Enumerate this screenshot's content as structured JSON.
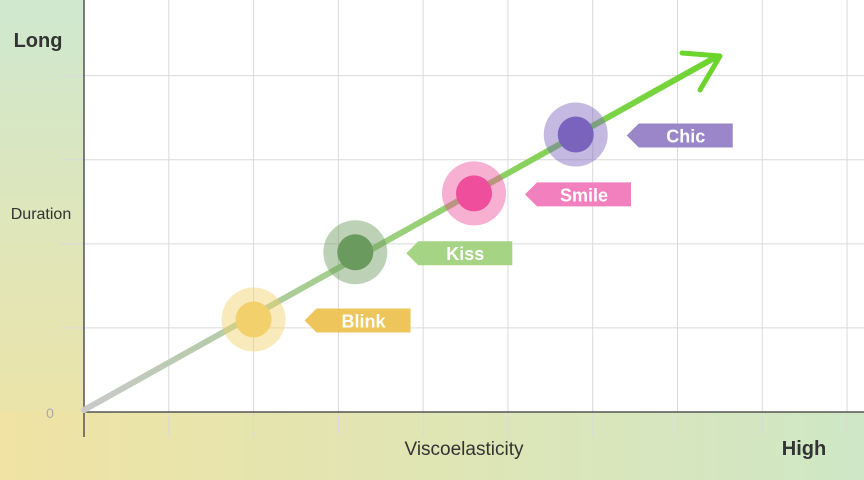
{
  "chart_data": {
    "type": "scatter",
    "title": "",
    "xlabel": "Viscoelasticity",
    "ylabel": "Duration",
    "y_top_label": "Long",
    "x_right_label": "High",
    "origin_label": "0",
    "grid": true,
    "trend_arrow": true,
    "xlim": [
      0,
      9.2
    ],
    "ylim": [
      0,
      4.9
    ],
    "points": [
      {
        "label": "Blink",
        "x": 2.0,
        "y": 1.1,
        "color": "#F2D06B",
        "label_color": "#EDC55B"
      },
      {
        "label": "Kiss",
        "x": 3.2,
        "y": 1.9,
        "color": "#6B9A5E",
        "label_color": "#A6D485"
      },
      {
        "label": "Smile",
        "x": 4.6,
        "y": 2.6,
        "color": "#EE4E9C",
        "label_color": "#F280BE"
      },
      {
        "label": "Chic",
        "x": 5.8,
        "y": 3.3,
        "color": "#7A63BD",
        "label_color": "#9A86C8"
      }
    ],
    "colors": {
      "arrow_start": "#C9C9C9",
      "arrow_end": "#6CD52D",
      "grid": "#DADADA",
      "axis": "#555555"
    }
  }
}
